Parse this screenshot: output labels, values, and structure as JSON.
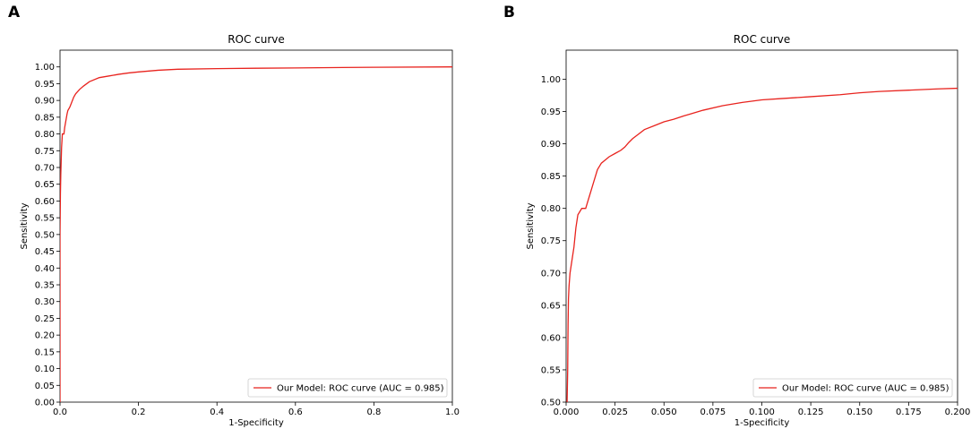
{
  "panels": [
    {
      "letter": "A"
    },
    {
      "letter": "B"
    }
  ],
  "chart_data": [
    {
      "type": "line",
      "title": "ROC curve",
      "xlabel": "1-Specificity",
      "ylabel": "Sensitivity",
      "xlim": [
        0,
        1
      ],
      "ylim": [
        0,
        1.05
      ],
      "x_ticks": [
        0.0,
        0.2,
        0.4,
        0.6,
        0.8,
        1.0
      ],
      "x_tick_labels": [
        "0.0",
        "0.2",
        "0.4",
        "0.6",
        "0.8",
        "1.0"
      ],
      "y_ticks": [
        0.0,
        0.05,
        0.1,
        0.15,
        0.2,
        0.25,
        0.3,
        0.35,
        0.4,
        0.45,
        0.5,
        0.55,
        0.6,
        0.65,
        0.7,
        0.75,
        0.8,
        0.85,
        0.9,
        0.95,
        1.0
      ],
      "y_tick_labels": [
        "0.00",
        "0.05",
        "0.10",
        "0.15",
        "0.20",
        "0.25",
        "0.30",
        "0.35",
        "0.40",
        "0.45",
        "0.50",
        "0.55",
        "0.60",
        "0.65",
        "0.70",
        "0.75",
        "0.80",
        "0.85",
        "0.90",
        "0.95",
        "1.00"
      ],
      "legend": "lower-right",
      "grid": false,
      "color": "#e8231e",
      "series": [
        {
          "name": "Our Model: ROC curve (AUC = 0.985)",
          "x": [
            0,
            0,
            0.001,
            0.002,
            0.003,
            0.004,
            0.005,
            0.006,
            0.008,
            0.01,
            0.012,
            0.015,
            0.018,
            0.02,
            0.025,
            0.03,
            0.035,
            0.04,
            0.05,
            0.06,
            0.075,
            0.1,
            0.125,
            0.15,
            0.175,
            0.2,
            0.25,
            0.3,
            0.4,
            0.5,
            0.6,
            0.8,
            1.0
          ],
          "y": [
            0,
            0.5,
            0.62,
            0.68,
            0.72,
            0.76,
            0.78,
            0.8,
            0.8,
            0.8,
            0.82,
            0.84,
            0.86,
            0.87,
            0.88,
            0.895,
            0.91,
            0.92,
            0.933,
            0.943,
            0.956,
            0.968,
            0.973,
            0.978,
            0.982,
            0.985,
            0.99,
            0.993,
            0.995,
            0.996,
            0.997,
            0.999,
            1.0
          ]
        }
      ]
    },
    {
      "type": "line",
      "title": "ROC curve",
      "xlabel": "1-Specificity",
      "ylabel": "Sensitivity",
      "xlim": [
        0,
        0.2
      ],
      "ylim": [
        0.5,
        1.045
      ],
      "x_ticks": [
        0.0,
        0.025,
        0.05,
        0.075,
        0.1,
        0.125,
        0.15,
        0.175,
        0.2
      ],
      "x_tick_labels": [
        "0.000",
        "0.025",
        "0.050",
        "0.075",
        "0.100",
        "0.125",
        "0.150",
        "0.175",
        "0.200"
      ],
      "y_ticks": [
        0.5,
        0.55,
        0.6,
        0.65,
        0.7,
        0.75,
        0.8,
        0.85,
        0.9,
        0.95,
        1.0
      ],
      "y_tick_labels": [
        "0.50",
        "0.55",
        "0.60",
        "0.65",
        "0.70",
        "0.75",
        "0.80",
        "0.85",
        "0.90",
        "0.95",
        "1.00"
      ],
      "legend": "lower-right",
      "grid": false,
      "color": "#e8231e",
      "series": [
        {
          "name": "Our Model: ROC curve (AUC = 0.985)",
          "x": [
            0.0005,
            0.0008,
            0.001,
            0.0012,
            0.0015,
            0.002,
            0.003,
            0.004,
            0.005,
            0.006,
            0.008,
            0.01,
            0.011,
            0.012,
            0.013,
            0.014,
            0.016,
            0.018,
            0.02,
            0.022,
            0.025,
            0.028,
            0.03,
            0.032,
            0.034,
            0.037,
            0.04,
            0.045,
            0.05,
            0.055,
            0.06,
            0.07,
            0.08,
            0.09,
            0.1,
            0.11,
            0.125,
            0.14,
            0.15,
            0.16,
            0.175,
            0.19,
            0.2
          ],
          "y": [
            0.5,
            0.55,
            0.62,
            0.66,
            0.68,
            0.7,
            0.72,
            0.74,
            0.77,
            0.79,
            0.8,
            0.8,
            0.81,
            0.82,
            0.83,
            0.84,
            0.86,
            0.87,
            0.875,
            0.88,
            0.885,
            0.89,
            0.895,
            0.902,
            0.908,
            0.915,
            0.922,
            0.928,
            0.934,
            0.938,
            0.943,
            0.952,
            0.959,
            0.964,
            0.968,
            0.97,
            0.973,
            0.976,
            0.979,
            0.981,
            0.983,
            0.985,
            0.986
          ]
        }
      ]
    }
  ]
}
